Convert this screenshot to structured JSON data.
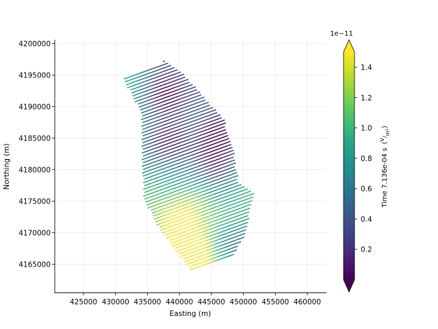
{
  "chart_data": {
    "type": "scatter",
    "title": "",
    "xlabel": "Easting (m)",
    "ylabel": "Northing (m)",
    "xlim": [
      420500,
      463000
    ],
    "ylim": [
      4160500,
      4200600
    ],
    "xticks": [
      425000,
      430000,
      435000,
      440000,
      445000,
      450000,
      455000,
      460000
    ],
    "yticks": [
      4165000,
      4170000,
      4175000,
      4180000,
      4185000,
      4190000,
      4195000,
      4200000
    ],
    "grid": true,
    "description_region": {
      "boundary": [
        [
          431000,
          4194500
        ],
        [
          437800,
          4197300
        ],
        [
          441000,
          4195000
        ],
        [
          444000,
          4191500
        ],
        [
          447000,
          4188200
        ],
        [
          448500,
          4183800
        ],
        [
          449000,
          4180000
        ],
        [
          449500,
          4178000
        ],
        [
          451800,
          4176200
        ],
        [
          451000,
          4172500
        ],
        [
          450000,
          4168800
        ],
        [
          448500,
          4166500
        ],
        [
          447000,
          4166000
        ],
        [
          441700,
          4163800
        ],
        [
          436700,
          4170500
        ],
        [
          434300,
          4175400
        ],
        [
          434000,
          4183000
        ],
        [
          433900,
          4189000
        ]
      ],
      "flight_line_spacing_m": 500,
      "flight_line_direction_deg": 20
    },
    "value_field": {
      "low_anomalies": [
        {
          "easting": 438000,
          "northing": 4192000,
          "value": 0.1
        },
        {
          "easting": 438500,
          "northing": 4184000,
          "value": 0.2
        },
        {
          "easting": 446000,
          "northing": 4186000,
          "value": 0.15
        },
        {
          "easting": 449000,
          "northing": 4168000,
          "value": 0.15
        },
        {
          "easting": 446000,
          "northing": 4181000,
          "value": 0.25
        }
      ],
      "high_anomalies": [
        {
          "easting": 442000,
          "northing": 4167000,
          "value": 1.5
        },
        {
          "easting": 432500,
          "northing": 4193500,
          "value": 1.2
        },
        {
          "easting": 440500,
          "northing": 4172500,
          "value": 1.3
        }
      ]
    },
    "colorbar": {
      "colormap": "viridis",
      "range": [
        0.0,
        1.5
      ],
      "extend": "both",
      "ticks": [
        "0.2",
        "0.4",
        "0.6",
        "0.8",
        "1.0",
        "1.2",
        "1.4"
      ],
      "exponent": "1e−11",
      "label": "Time 7.136e-04 s"
    }
  }
}
